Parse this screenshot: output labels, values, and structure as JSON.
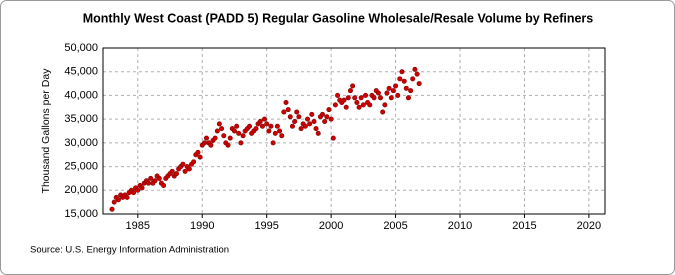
{
  "chart_data": {
    "type": "scatter",
    "title": "Monthly West Coast (PADD 5) Regular Gasoline Wholesale/Resale Volume by Refiners",
    "y_label": "Thousand Gallons per Day",
    "source": "Source: U.S. Energy Information Administration",
    "xlim": [
      1982.3,
      2021.25
    ],
    "xticks": [
      1985,
      1990,
      1995,
      2000,
      2005,
      2010,
      2015,
      2020
    ],
    "ylim": [
      15000,
      50000
    ],
    "yticks": [
      {
        "value": 15000,
        "label": "15,000"
      },
      {
        "value": 20000,
        "label": "20,000"
      },
      {
        "value": 25000,
        "label": "25,000"
      },
      {
        "value": 30000,
        "label": "30,000"
      },
      {
        "value": 35000,
        "label": "35,000"
      },
      {
        "value": 40000,
        "label": "40,000"
      },
      {
        "value": 45000,
        "label": "45,000"
      },
      {
        "value": 50000,
        "label": "50,000"
      }
    ],
    "grid": true,
    "series": [
      {
        "color": "#cc0000",
        "x": [
          1983.0,
          1983.17,
          1983.33,
          1983.5,
          1983.67,
          1983.83,
          1984.0,
          1984.17,
          1984.33,
          1984.5,
          1984.67,
          1984.83,
          1985.0,
          1985.17,
          1985.33,
          1985.5,
          1985.67,
          1985.83,
          1986.0,
          1986.17,
          1986.33,
          1986.5,
          1986.67,
          1986.83,
          1987.0,
          1987.17,
          1987.33,
          1987.5,
          1987.67,
          1987.83,
          1988.0,
          1988.17,
          1988.33,
          1988.5,
          1988.67,
          1988.83,
          1989.0,
          1989.17,
          1989.33,
          1989.5,
          1989.67,
          1989.83,
          1990.0,
          1990.17,
          1990.33,
          1990.5,
          1990.67,
          1990.83,
          1991.0,
          1991.17,
          1991.33,
          1991.5,
          1991.67,
          1991.83,
          1992.0,
          1992.17,
          1992.33,
          1992.5,
          1992.67,
          1992.83,
          1993.0,
          1993.17,
          1993.33,
          1993.5,
          1993.67,
          1993.83,
          1994.0,
          1994.17,
          1994.33,
          1994.5,
          1994.67,
          1994.83,
          1995.0,
          1995.17,
          1995.33,
          1995.5,
          1995.67,
          1995.83,
          1996.0,
          1996.17,
          1996.33,
          1996.5,
          1996.67,
          1996.83,
          1997.0,
          1997.17,
          1997.33,
          1997.5,
          1997.67,
          1997.83,
          1998.0,
          1998.17,
          1998.33,
          1998.5,
          1998.67,
          1998.83,
          1999.0,
          1999.17,
          1999.33,
          1999.5,
          1999.67,
          1999.83,
          2000.0,
          2000.17,
          2000.33,
          2000.5,
          2000.67,
          2000.83,
          2001.0,
          2001.17,
          2001.33,
          2001.5,
          2001.67,
          2001.83,
          2002.0,
          2002.17,
          2002.33,
          2002.5,
          2002.67,
          2002.83,
          2003.0,
          2003.17,
          2003.33,
          2003.5,
          2003.67,
          2003.83,
          2004.0,
          2004.17,
          2004.33,
          2004.5,
          2004.67,
          2004.83,
          2005.0,
          2005.17,
          2005.33,
          2005.5,
          2005.67,
          2005.83,
          2006.0,
          2006.17,
          2006.33,
          2006.5,
          2006.67,
          2006.83
        ],
        "values": [
          16000,
          17500,
          18500,
          18000,
          19000,
          18500,
          19000,
          18500,
          19500,
          20000,
          19500,
          20500,
          20000,
          21000,
          20500,
          21500,
          22000,
          21500,
          22500,
          21500,
          22000,
          23000,
          22500,
          21500,
          21000,
          22500,
          23000,
          23500,
          24000,
          23000,
          23500,
          24500,
          25000,
          25500,
          24000,
          25000,
          24500,
          25500,
          26000,
          27500,
          28000,
          27000,
          29500,
          30000,
          31000,
          30000,
          29500,
          30500,
          31000,
          32500,
          34000,
          33000,
          31500,
          30000,
          29500,
          31000,
          33000,
          32500,
          33500,
          32000,
          30000,
          31500,
          32500,
          33000,
          33500,
          32000,
          32500,
          33000,
          34000,
          34500,
          33500,
          35000,
          34000,
          32500,
          33500,
          30000,
          32000,
          33500,
          32500,
          31500,
          36500,
          38500,
          37000,
          35500,
          33500,
          34500,
          36500,
          35500,
          33000,
          34000,
          33500,
          35000,
          34000,
          36000,
          34500,
          33000,
          32000,
          35500,
          36000,
          34500,
          35500,
          37000,
          35000,
          31000,
          38000,
          40000,
          39000,
          38500,
          39000,
          37500,
          39500,
          41000,
          42000,
          39500,
          38500,
          37500,
          39500,
          38000,
          40000,
          38500,
          38000,
          40000,
          39500,
          41000,
          40500,
          39500,
          36500,
          38000,
          40500,
          41500,
          39500,
          41000,
          42000,
          40000,
          43500,
          45000,
          43000,
          41500,
          39500,
          41000,
          43500,
          45500,
          44500,
          42500
        ]
      }
    ]
  }
}
